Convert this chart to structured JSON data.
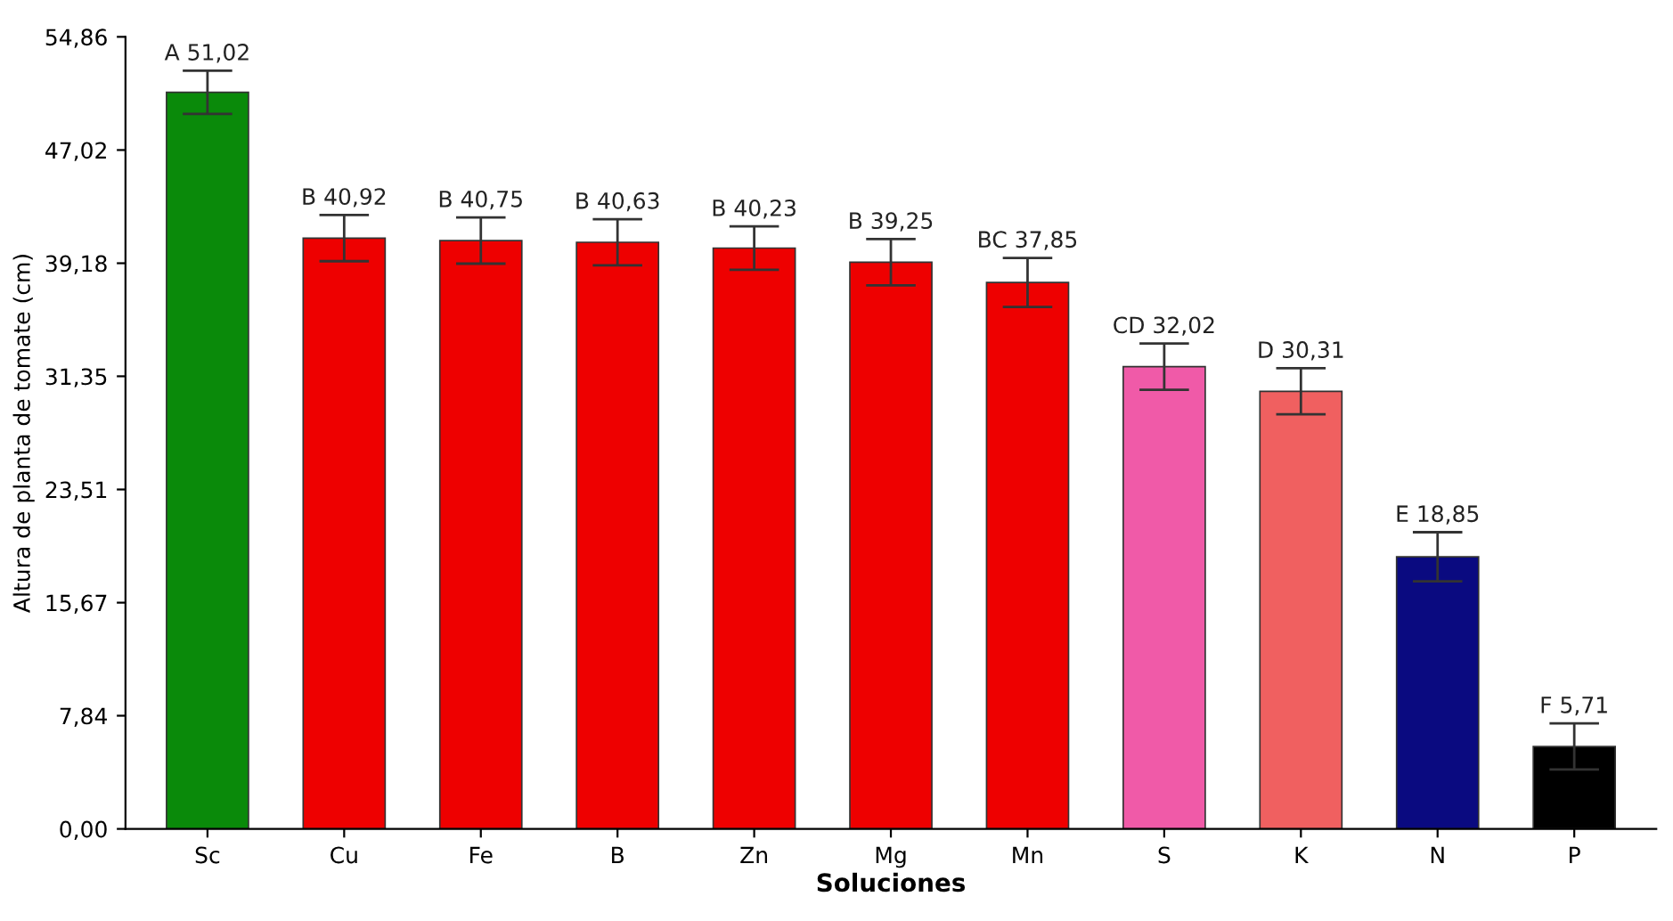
{
  "chart_data": {
    "type": "bar",
    "xlabel": "Soluciones",
    "ylabel": "Altura de planta de tomate (cm)",
    "categories": [
      "Sc",
      "Cu",
      "Fe",
      "B",
      "Zn",
      "Mg",
      "Mn",
      "S",
      "K",
      "N",
      "P"
    ],
    "values": [
      51.02,
      40.92,
      40.75,
      40.63,
      40.23,
      39.25,
      37.85,
      32.02,
      30.31,
      18.85,
      5.71
    ],
    "colors": [
      "#0a8a0a",
      "#ee0000",
      "#ee0000",
      "#ee0000",
      "#ee0000",
      "#ee0000",
      "#ee0000",
      "#f05aa8",
      "#f06060",
      "#0a0a80",
      "#000000"
    ],
    "errors": [
      1.5,
      1.6,
      1.6,
      1.6,
      1.5,
      1.6,
      1.7,
      1.6,
      1.6,
      1.7,
      1.6
    ],
    "value_labels": [
      "A 51,02",
      "B 40,92",
      "B 40,75",
      "B 40,63",
      "B 40,23",
      "B 39,25",
      "BC 37,85",
      "CD 32,02",
      "D 30,31",
      "E 18,85",
      "F 5,71"
    ],
    "ylim": [
      0,
      54.86
    ],
    "yticks": [
      {
        "value": 0,
        "label": "0,00"
      },
      {
        "value": 7.84,
        "label": "7,84"
      },
      {
        "value": 15.67,
        "label": "15,67"
      },
      {
        "value": 23.51,
        "label": "23,51"
      },
      {
        "value": 31.35,
        "label": "31,35"
      },
      {
        "value": 39.18,
        "label": "39,18"
      },
      {
        "value": 47.02,
        "label": "47,02"
      },
      {
        "value": 54.86,
        "label": "54,86"
      }
    ],
    "grid": false
  }
}
